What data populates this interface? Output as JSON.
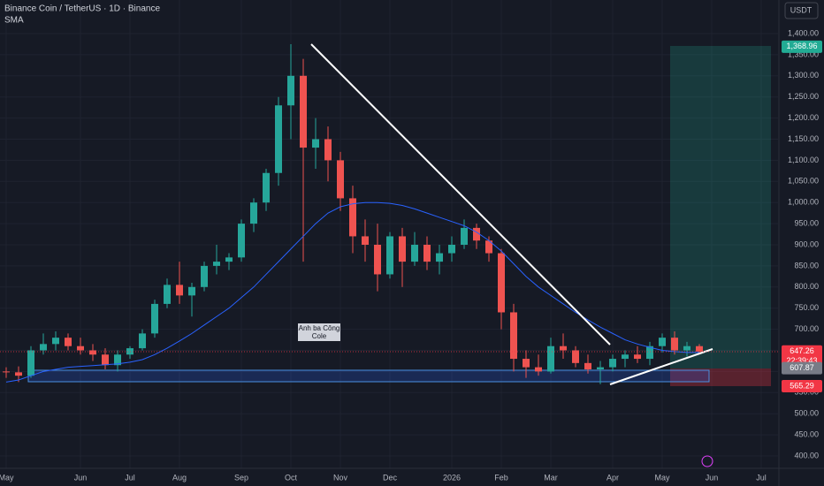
{
  "chart_data": {
    "type": "candlestick",
    "title": "Binance Coin / TetherUS · 1D · Binance",
    "indicator": "SMA",
    "currency": "USDT",
    "annotation": "Anh ba Công Cole",
    "countdown": "22:39:43",
    "categories": [
      "May",
      null,
      null,
      null,
      null,
      null,
      "Jun",
      null,
      null,
      null,
      "Jul",
      null,
      null,
      null,
      "Aug",
      null,
      null,
      null,
      null,
      "Sep",
      null,
      null,
      null,
      "Oct",
      null,
      null,
      null,
      "Nov",
      null,
      null,
      null,
      "Dec",
      null,
      null,
      null,
      null,
      "2026",
      null,
      null,
      null,
      "Feb",
      null,
      null,
      null,
      "Mar",
      null,
      null,
      null,
      null,
      "Apr",
      null,
      null,
      null,
      "May",
      null,
      null,
      null,
      "Jun",
      null,
      null,
      null,
      "Jul"
    ],
    "open": [
      600,
      598,
      590,
      650,
      665,
      680,
      660,
      650,
      640,
      615,
      640,
      655,
      690,
      760,
      805,
      780,
      800,
      850,
      860,
      870,
      950,
      1000,
      1070,
      1230,
      1300,
      1130,
      1150,
      1100,
      1010,
      920,
      900,
      830,
      920,
      860,
      900,
      860,
      880,
      900,
      940,
      910,
      880,
      740,
      630,
      610,
      600,
      660,
      650,
      620,
      605,
      610,
      630,
      640,
      630,
      660,
      680,
      650,
      660,
      null,
      null,
      null,
      null,
      null
    ],
    "high": [
      610,
      612,
      660,
      690,
      695,
      690,
      680,
      665,
      655,
      650,
      660,
      700,
      770,
      820,
      860,
      810,
      860,
      900,
      880,
      960,
      1010,
      1080,
      1250,
      1375,
      1340,
      1200,
      1180,
      1120,
      1040,
      960,
      950,
      930,
      940,
      930,
      920,
      900,
      920,
      960,
      950,
      920,
      890,
      760,
      650,
      640,
      680,
      690,
      660,
      640,
      625,
      640,
      650,
      660,
      670,
      690,
      695,
      670,
      665,
      null,
      null,
      null,
      null,
      null
    ],
    "low": [
      585,
      575,
      585,
      640,
      650,
      650,
      640,
      625,
      605,
      600,
      630,
      650,
      680,
      750,
      760,
      730,
      790,
      830,
      840,
      860,
      930,
      980,
      1040,
      1150,
      860,
      1080,
      1050,
      980,
      880,
      860,
      790,
      820,
      800,
      850,
      840,
      830,
      860,
      890,
      890,
      860,
      700,
      600,
      585,
      590,
      595,
      630,
      610,
      595,
      570,
      600,
      610,
      620,
      615,
      645,
      640,
      635,
      640,
      null,
      null,
      null,
      null,
      null
    ],
    "close": [
      598,
      590,
      650,
      665,
      680,
      660,
      650,
      640,
      615,
      640,
      655,
      690,
      760,
      805,
      780,
      800,
      850,
      860,
      870,
      950,
      1000,
      1070,
      1230,
      1300,
      1130,
      1150,
      1100,
      1010,
      920,
      900,
      830,
      920,
      860,
      900,
      860,
      880,
      900,
      940,
      910,
      880,
      740,
      630,
      610,
      600,
      660,
      650,
      620,
      605,
      610,
      630,
      640,
      630,
      660,
      680,
      650,
      660,
      647.26,
      null,
      null,
      null,
      null,
      null
    ],
    "up_color": "#26a69a",
    "down_color": "#ef5350",
    "sma": {
      "color": "#2962ff",
      "values": [
        575,
        580,
        590,
        600,
        605,
        610,
        612,
        614,
        616,
        618,
        622,
        628,
        640,
        655,
        672,
        690,
        710,
        730,
        750,
        775,
        800,
        830,
        860,
        890,
        920,
        950,
        975,
        990,
        997,
        1000,
        1000,
        998,
        993,
        985,
        975,
        965,
        955,
        945,
        930,
        910,
        885,
        855,
        825,
        800,
        780,
        760,
        740,
        722,
        705,
        690,
        675,
        665,
        657,
        650,
        647,
        645,
        645,
        null,
        null,
        null,
        null,
        null
      ]
    },
    "ylim": [
      370.7,
      1479.5
    ],
    "yticks": [
      {
        "value": 400,
        "label": "400.00"
      },
      {
        "value": 450,
        "label": "450.00"
      },
      {
        "value": 500,
        "label": "500.00"
      },
      {
        "value": 550,
        "label": "550.00"
      },
      {
        "value": 600,
        "label": "600.00"
      },
      {
        "value": 650,
        "label": "650.00"
      },
      {
        "value": 700,
        "label": "700.00"
      },
      {
        "value": 750,
        "label": "750.00"
      },
      {
        "value": 800,
        "label": "800.00"
      },
      {
        "value": 850,
        "label": "850.00"
      },
      {
        "value": 900,
        "label": "900.00"
      },
      {
        "value": 950,
        "label": "950.00"
      },
      {
        "value": 1000,
        "label": "1,000.00"
      },
      {
        "value": 1050,
        "label": "1,050.00"
      },
      {
        "value": 1100,
        "label": "1,100.00"
      },
      {
        "value": 1150,
        "label": "1,150.00"
      },
      {
        "value": 1200,
        "label": "1,200.00"
      },
      {
        "value": 1250,
        "label": "1,250.00"
      },
      {
        "value": 1300,
        "label": "1,300.00"
      },
      {
        "value": 1350,
        "label": "1,350.00"
      },
      {
        "value": 1400,
        "label": "1,400.00"
      }
    ],
    "grid": true,
    "price_labels": [
      {
        "value": 1368.96,
        "label": "1,368.96",
        "color": "#22ab94"
      },
      {
        "value": 647.26,
        "label": "647.26",
        "color": "#f23645"
      },
      {
        "value": 607.87,
        "label": "607.87",
        "color": "#787b86"
      },
      {
        "value": 565.29,
        "label": "565.29",
        "color": "#f23645"
      }
    ]
  }
}
